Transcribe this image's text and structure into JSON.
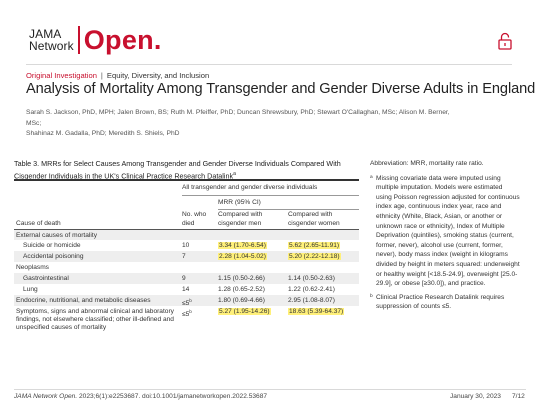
{
  "logo": {
    "line1": "JAMA",
    "line2": "Network",
    "open": "Open."
  },
  "header": {
    "lock_icon": "lock-open-icon",
    "accent_color": "#c8102e"
  },
  "article": {
    "type": "Original Investigation",
    "separator": "|",
    "topic": "Equity, Diversity, and Inclusion",
    "title": "Analysis of Mortality Among Transgender and Gender Diverse Adults in England",
    "authors_line1": "Sarah S. Jackson, PhD, MPH; Jalen Brown, BS; Ruth M. Pfeiffer, PhD; Duncan Shrewsbury, PhD; Stewart O'Callaghan, MSc; Alison M. Berner, MSc;",
    "authors_line2": "Shahinaz M. Gadalla, PhD; Meredith S. Shiels, PhD"
  },
  "table": {
    "caption": "Table 3. MRRs for Select Causes Among Transgender and Gender Diverse Individuals Compared With Cisgender Individuals in the UK's Clinical Practice Research Datalink",
    "caption_mark": "a",
    "group_header": "All transgender and gender diverse individuals",
    "mrr_header": "MRR (95% CI)",
    "col_cause": "Cause of death",
    "col_died": "No. who died",
    "col_men": "Compared with cisgender men",
    "col_women": "Compared with cisgender women",
    "rows": [
      {
        "cause": "External causes of mortality",
        "died": "",
        "died_mark": "",
        "men": "",
        "women": "",
        "level": 0,
        "shade": true,
        "men_hl": false,
        "women_hl": false
      },
      {
        "cause": "Suicide or homicide",
        "died": "10",
        "died_mark": "",
        "men": "3.34 (1.70-6.54)",
        "women": "5.62 (2.65-11.91)",
        "level": 1,
        "shade": false,
        "men_hl": true,
        "women_hl": true
      },
      {
        "cause": "Accidental poisoning",
        "died": "7",
        "died_mark": "",
        "men": "2.28 (1.04-5.02)",
        "women": "5.20 (2.22-12.18)",
        "level": 1,
        "shade": true,
        "men_hl": true,
        "women_hl": true
      },
      {
        "cause": "Neoplasms",
        "died": "",
        "died_mark": "",
        "men": "",
        "women": "",
        "level": 0,
        "shade": false,
        "men_hl": false,
        "women_hl": false
      },
      {
        "cause": "Gastrointestinal",
        "died": "9",
        "died_mark": "",
        "men": "1.15 (0.50-2.66)",
        "women": "1.14 (0.50-2.63)",
        "level": 1,
        "shade": true,
        "men_hl": false,
        "women_hl": false
      },
      {
        "cause": "Lung",
        "died": "14",
        "died_mark": "",
        "men": "1.28 (0.65-2.52)",
        "women": "1.22 (0.62-2.41)",
        "level": 1,
        "shade": false,
        "men_hl": false,
        "women_hl": false
      },
      {
        "cause": "Endocrine, nutritional, and metabolic diseases",
        "died": "≤5",
        "died_mark": "b",
        "men": "1.80 (0.69-4.66)",
        "women": "2.95 (1.08-8.07)",
        "level": 0,
        "shade": true,
        "men_hl": false,
        "women_hl": false
      },
      {
        "cause": "Symptoms, signs and abnormal clinical and laboratory findings, not elsewhere classified; other ill-defined and unspecified causes of mortality",
        "died": "≤5",
        "died_mark": "b",
        "men": "5.27 (1.95-14.26)",
        "women": "18.63 (5.39-64.37)",
        "level": 0,
        "shade": false,
        "men_hl": true,
        "women_hl": true
      }
    ]
  },
  "notes": {
    "abbreviations": "Abbreviation: MRR, mortality rate ratio.",
    "a_mark": "a",
    "a_text": "Missing covariate data were imputed using multiple imputation. Models were estimated using Poisson regression adjusted for continuous index age, continuous index year, race and ethnicity (White, Black, Asian, or another or unknown race or ethnicity), Index of Multiple Deprivation (quintiles), smoking status (current, former, never), alcohol use (current, former, never), body mass index (weight in kilograms divided by height in meters squared: underweight or healthy weight [<18.5-24.9], overweight [25.0-29.9], or obese [≥30.0]), and practice.",
    "b_mark": "b",
    "b_text": "Clinical Practice Research Datalink requires suppression of counts ≤5."
  },
  "footer": {
    "journal": "JAMA Network Open.",
    "citation": " 2023;6(1):e2253687. doi:10.1001/jamanetworkopen.2022.53687",
    "date": "January 30, 2023",
    "page": "7/12"
  },
  "colors": {
    "highlight": "#fff07a",
    "row_shade": "#eeeeee"
  }
}
